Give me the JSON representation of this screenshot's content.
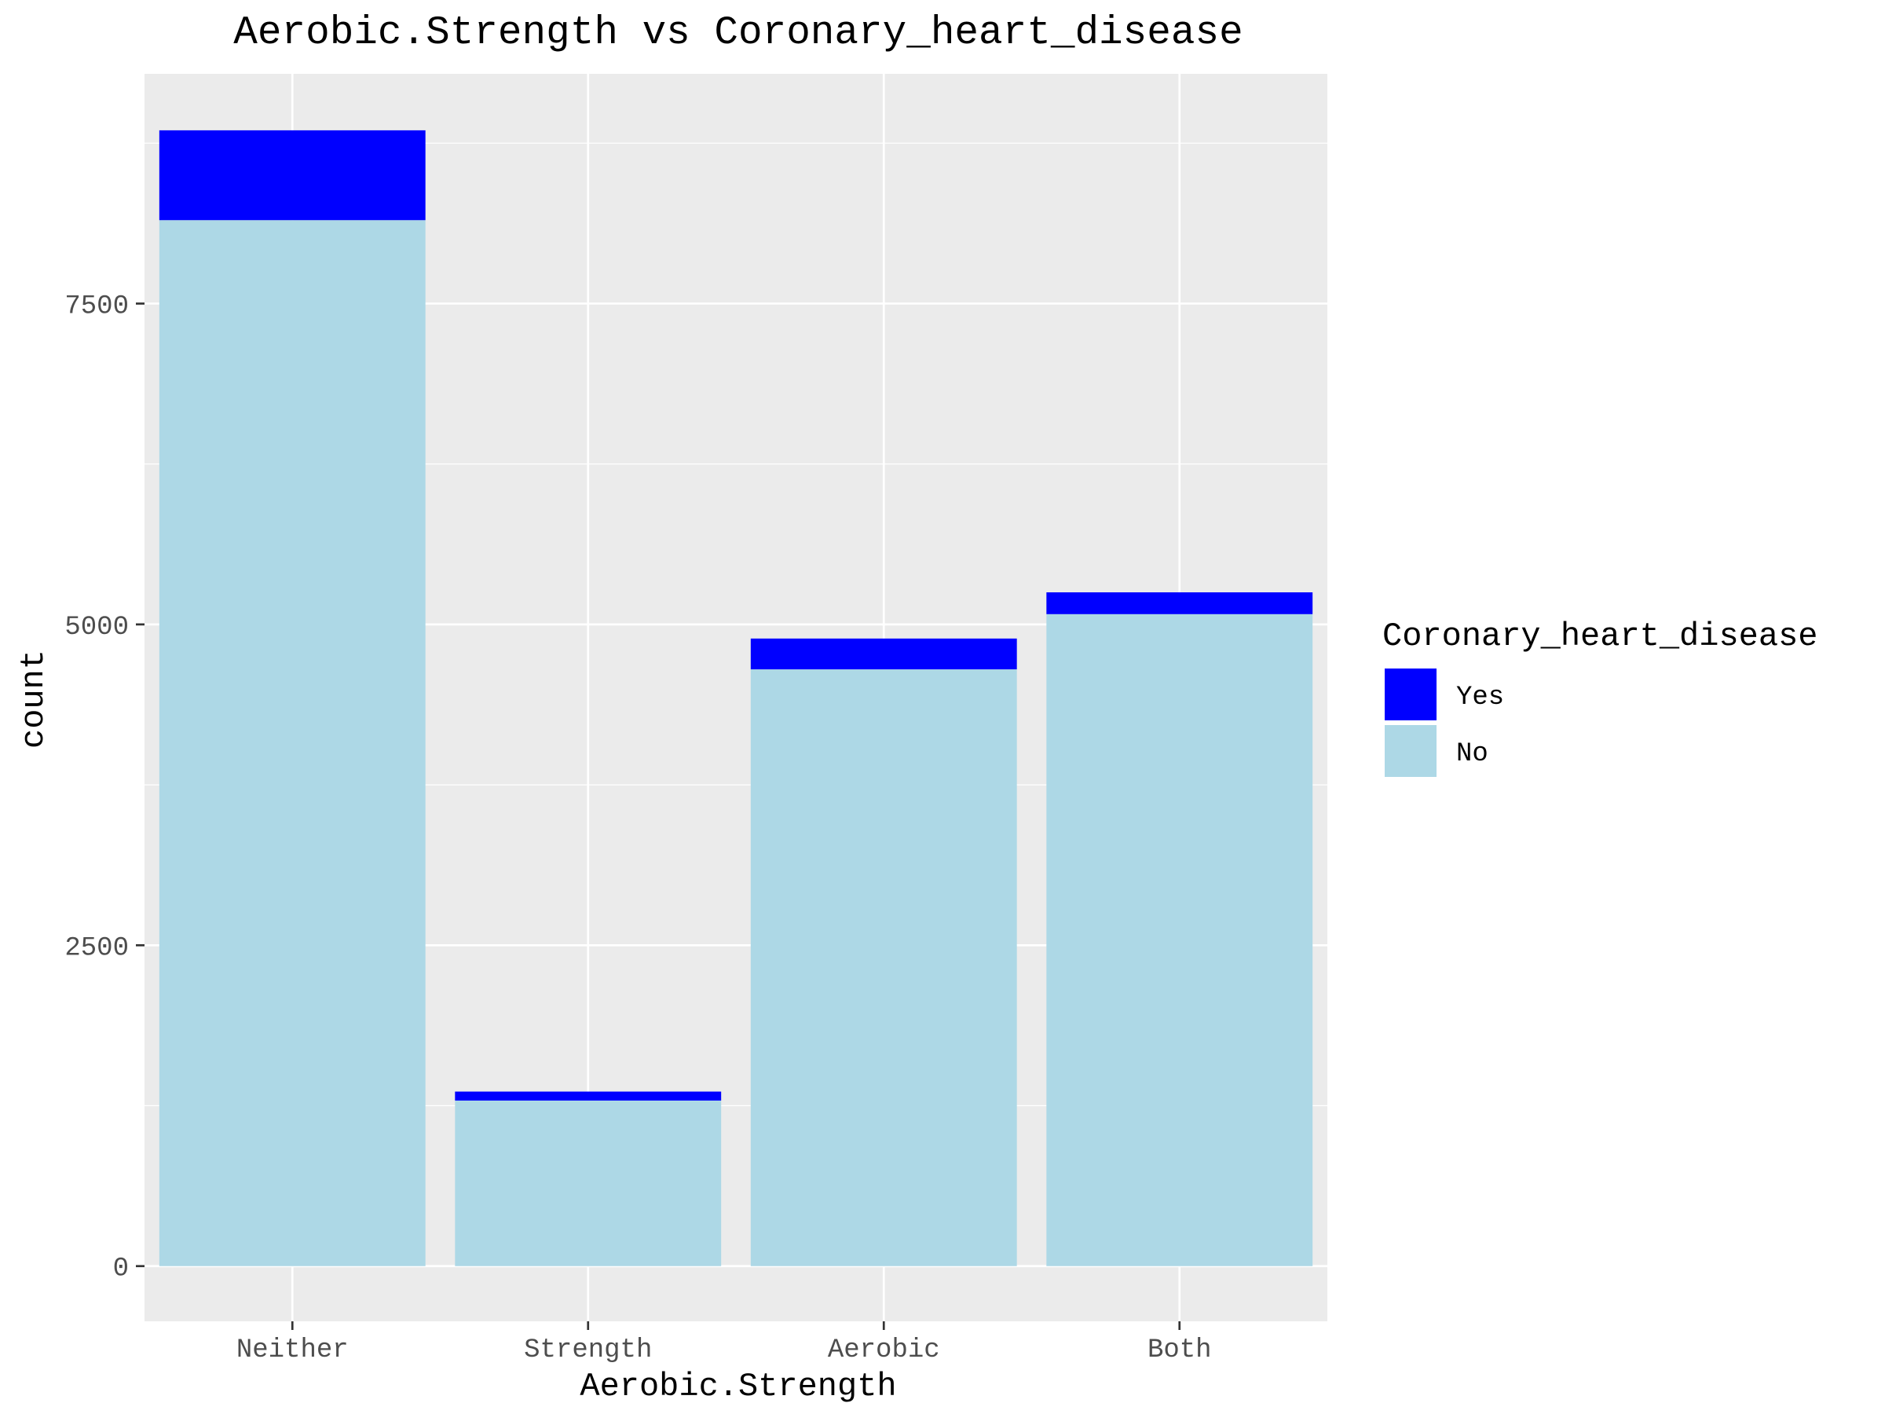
{
  "chart_data": {
    "type": "bar",
    "stacked": true,
    "title": "Aerobic.Strength vs Coronary_heart_disease",
    "xlabel": "Aerobic.Strength",
    "ylabel": "count",
    "categories": [
      "Neither",
      "Strength",
      "Aerobic",
      "Both"
    ],
    "series": [
      {
        "name": "No",
        "color": "#add8e6",
        "values": [
          8150,
          1290,
          4650,
          5080
        ]
      },
      {
        "name": "Yes",
        "color": "#0000ff",
        "values": [
          700,
          70,
          240,
          170
        ]
      }
    ],
    "ylim": [
      -430,
      9290
    ],
    "yticks": [
      0,
      2500,
      5000,
      7500
    ],
    "ytick_labels": [
      "0",
      "2500",
      "5000",
      "7500"
    ],
    "grid": true,
    "legend": {
      "title": "Coronary_heart_disease",
      "placement": "right",
      "entries": [
        "Yes",
        "No"
      ]
    }
  }
}
